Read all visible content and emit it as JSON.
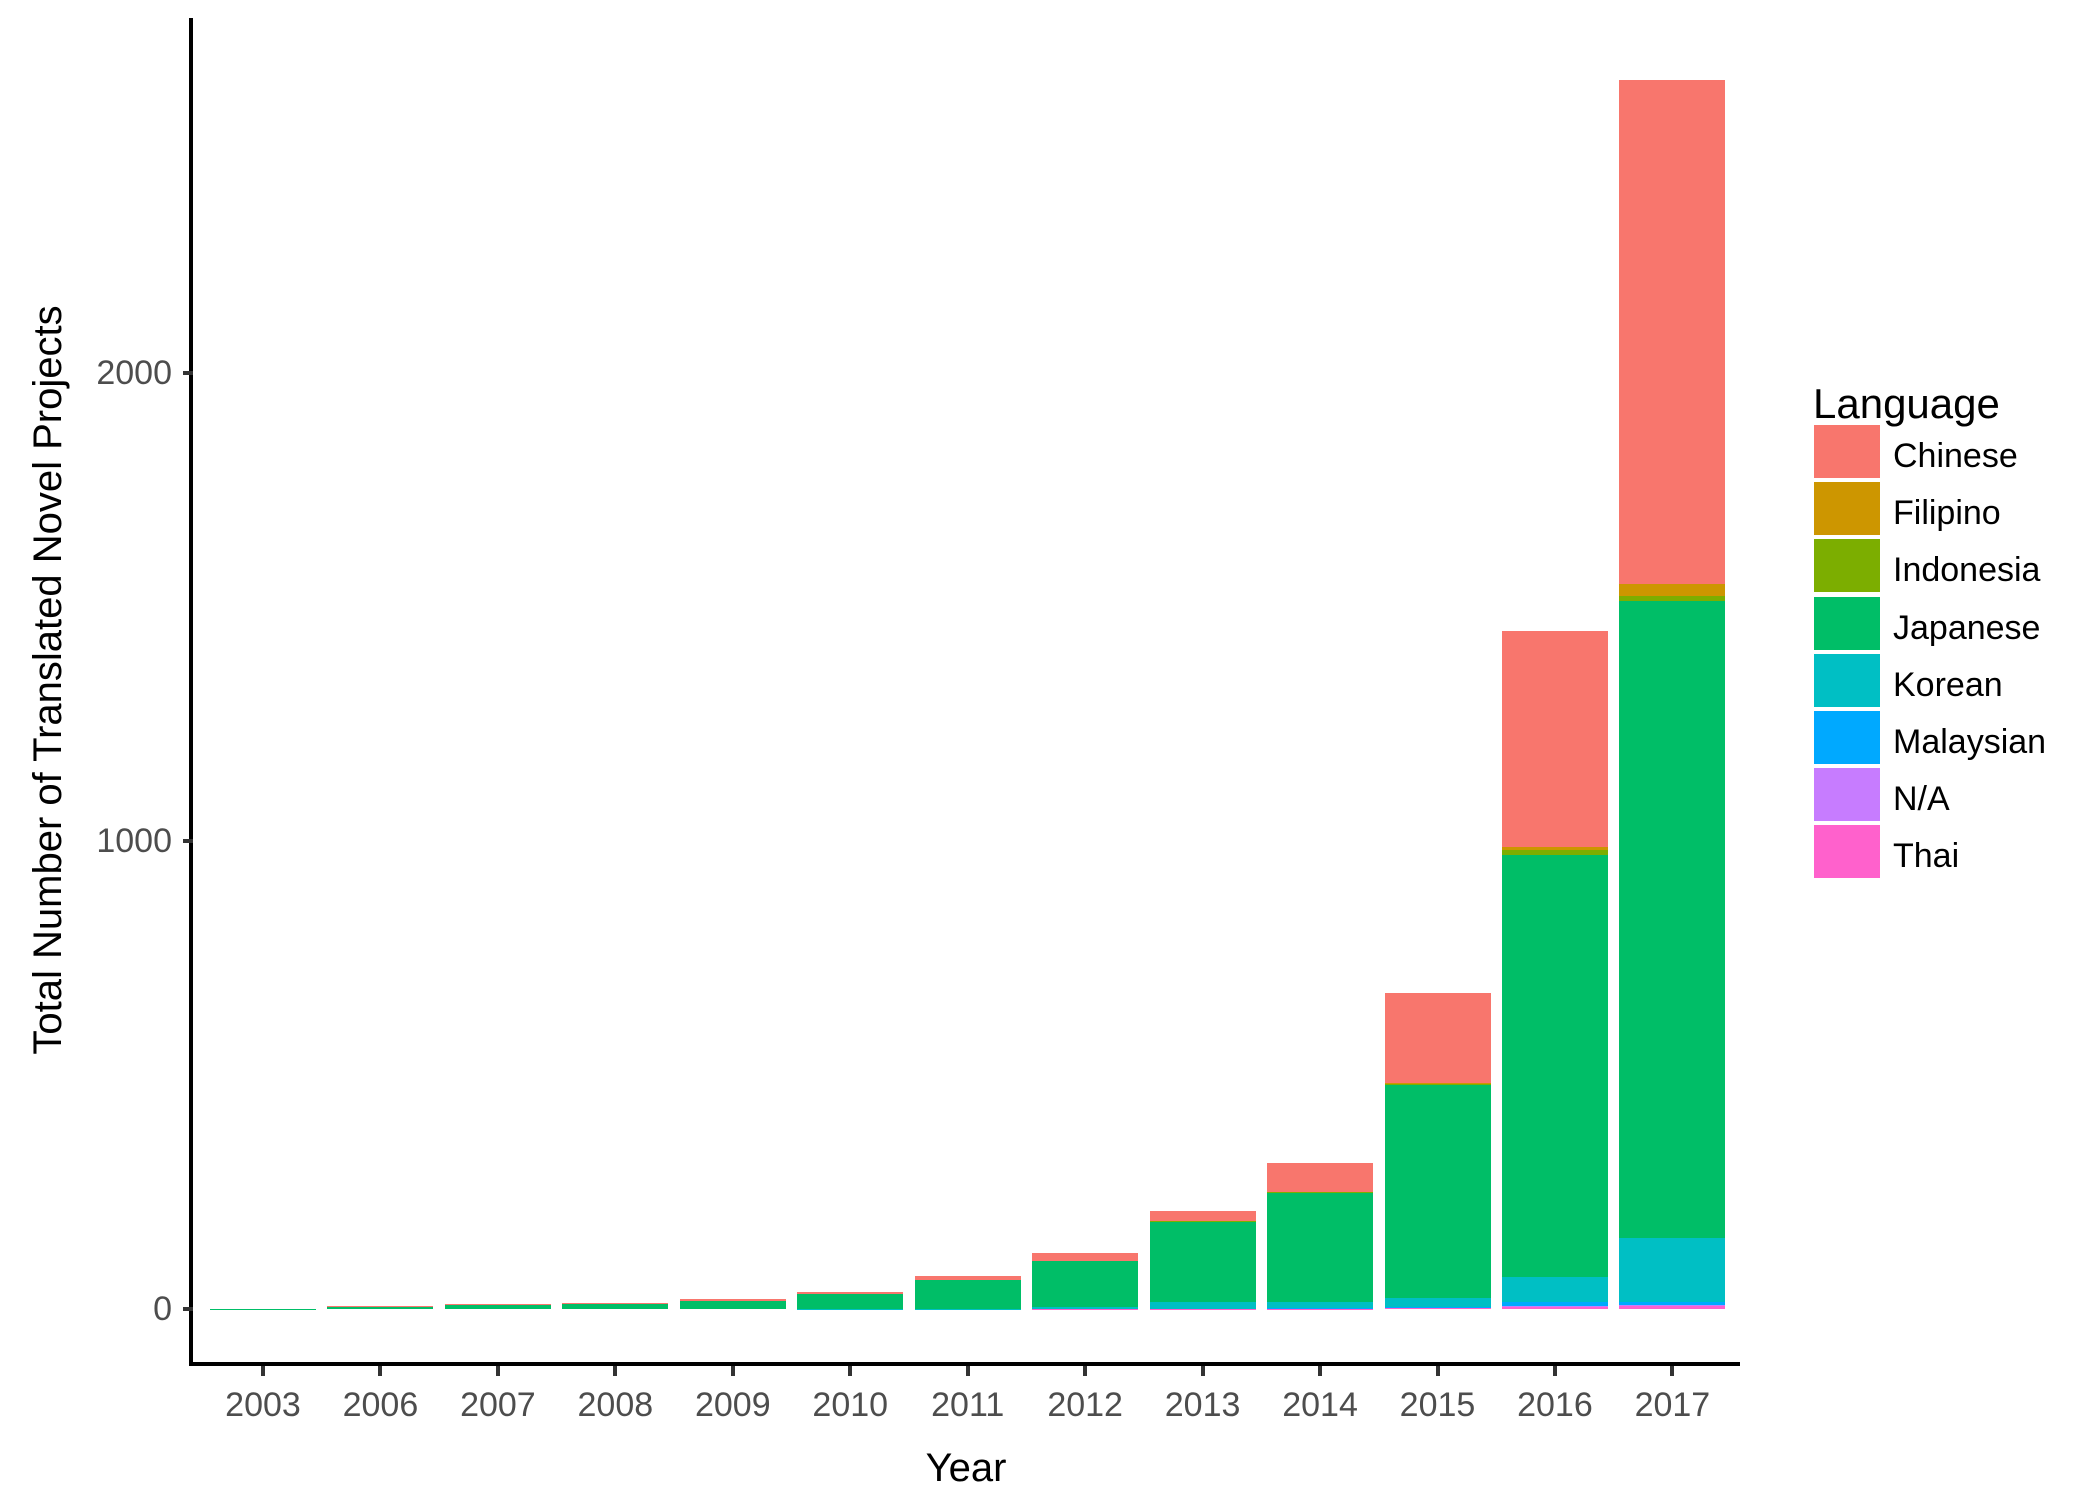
{
  "figure": {
    "background": "#FFFFFF"
  },
  "chart_data": {
    "type": "bar",
    "stacked": true,
    "orientation": "vertical",
    "title": "",
    "xlabel": "Year",
    "ylabel": "Total Number of Translated Novel Projects",
    "legend_title": "Language",
    "legend_position": "right",
    "grid": false,
    "categories": [
      "2003",
      "2006",
      "2007",
      "2008",
      "2009",
      "2010",
      "2011",
      "2012",
      "2013",
      "2014",
      "2015",
      "2016",
      "2017"
    ],
    "y_ticks": [
      {
        "label": "0",
        "value": 0
      },
      {
        "label": "1000",
        "value": 1000
      },
      {
        "label": "2000",
        "value": 2000
      }
    ],
    "ylim": [
      0,
      2760
    ],
    "stack_note": "first series listed is drawn at the top of each stacked bar",
    "series": [
      {
        "name": "Chinese",
        "color": "#F8766D",
        "values": [
          0,
          2,
          2,
          3,
          4,
          5,
          8,
          17,
          21,
          62,
          192,
          460,
          1077
        ]
      },
      {
        "name": "Filipino",
        "color": "#CD9600",
        "values": [
          0,
          0,
          0,
          0,
          0,
          0,
          0,
          0,
          0,
          0,
          2,
          8,
          26
        ]
      },
      {
        "name": "Indonesia",
        "color": "#7CAE00",
        "values": [
          0,
          0,
          0,
          0,
          0,
          0,
          0,
          0,
          1,
          1,
          2,
          9,
          11
        ]
      },
      {
        "name": "Japanese",
        "color": "#00BE67",
        "values": [
          1,
          4,
          9,
          10,
          17,
          31,
          62,
          98,
          172,
          235,
          455,
          902,
          1361
        ]
      },
      {
        "name": "Korean",
        "color": "#00BFC4",
        "values": [
          0,
          0,
          0,
          0,
          0,
          1,
          1,
          4,
          15,
          13,
          20,
          55,
          137
        ]
      },
      {
        "name": "Malaysian",
        "color": "#00A9FF",
        "values": [
          0,
          0,
          0,
          0,
          0,
          0,
          0,
          0,
          0,
          1,
          2,
          7,
          7
        ]
      },
      {
        "name": "N/A",
        "color": "#C77CFF",
        "values": [
          0,
          0,
          0,
          0,
          0,
          0,
          0,
          0,
          0,
          0,
          0,
          1,
          2
        ]
      },
      {
        "name": "Thai",
        "color": "#FF61CC",
        "values": [
          0,
          0,
          0,
          0,
          0,
          0,
          0,
          1,
          1,
          1,
          2,
          6,
          6
        ]
      }
    ],
    "totals_by_year": [
      1,
      6,
      11,
      13,
      21,
      37,
      71,
      120,
      210,
      313,
      675,
      1448,
      2627
    ],
    "axis_colors": {
      "tick_label": "#4D4D4D",
      "axis_line": "#000000",
      "title": "#000000"
    }
  }
}
